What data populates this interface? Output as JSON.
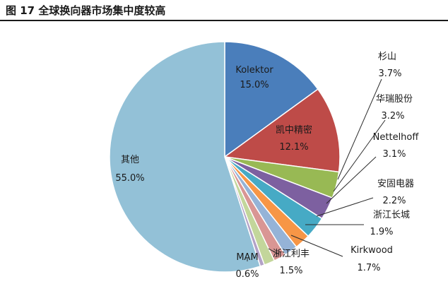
{
  "figure": {
    "title": "图 17 全球换向器市场集中度较高"
  },
  "chart_data": {
    "type": "pie",
    "title": "",
    "legend": "none",
    "slices": [
      {
        "name": "Kolektor",
        "value": 15.0,
        "label": "15.0%",
        "color": "#4a7ebb"
      },
      {
        "name": "凯中精密",
        "value": 12.1,
        "label": "12.1%",
        "color": "#be4b48"
      },
      {
        "name": "杉山",
        "value": 3.7,
        "label": "3.7%",
        "color": "#98b954"
      },
      {
        "name": "华瑞股份",
        "value": 3.2,
        "label": "3.2%",
        "color": "#7d60a0"
      },
      {
        "name": "Nettelhoff",
        "value": 3.1,
        "label": "3.1%",
        "color": "#46aac5"
      },
      {
        "name": "安固电器",
        "value": 2.2,
        "label": "2.2%",
        "color": "#f79646"
      },
      {
        "name": "浙江长城",
        "value": 1.9,
        "label": "1.9%",
        "color": "#95b3d7"
      },
      {
        "name": "Kirkwood",
        "value": 1.7,
        "label": "1.7%",
        "color": "#d99694"
      },
      {
        "name": "浙江利丰",
        "value": 1.5,
        "label": "1.5%",
        "color": "#c3d69b"
      },
      {
        "name": "MAM",
        "value": 0.6,
        "label": "0.6%",
        "color": "#b3a2c7"
      },
      {
        "name": "其他",
        "value": 55.0,
        "label": "55.0%",
        "color": "#93c1d7"
      }
    ]
  }
}
